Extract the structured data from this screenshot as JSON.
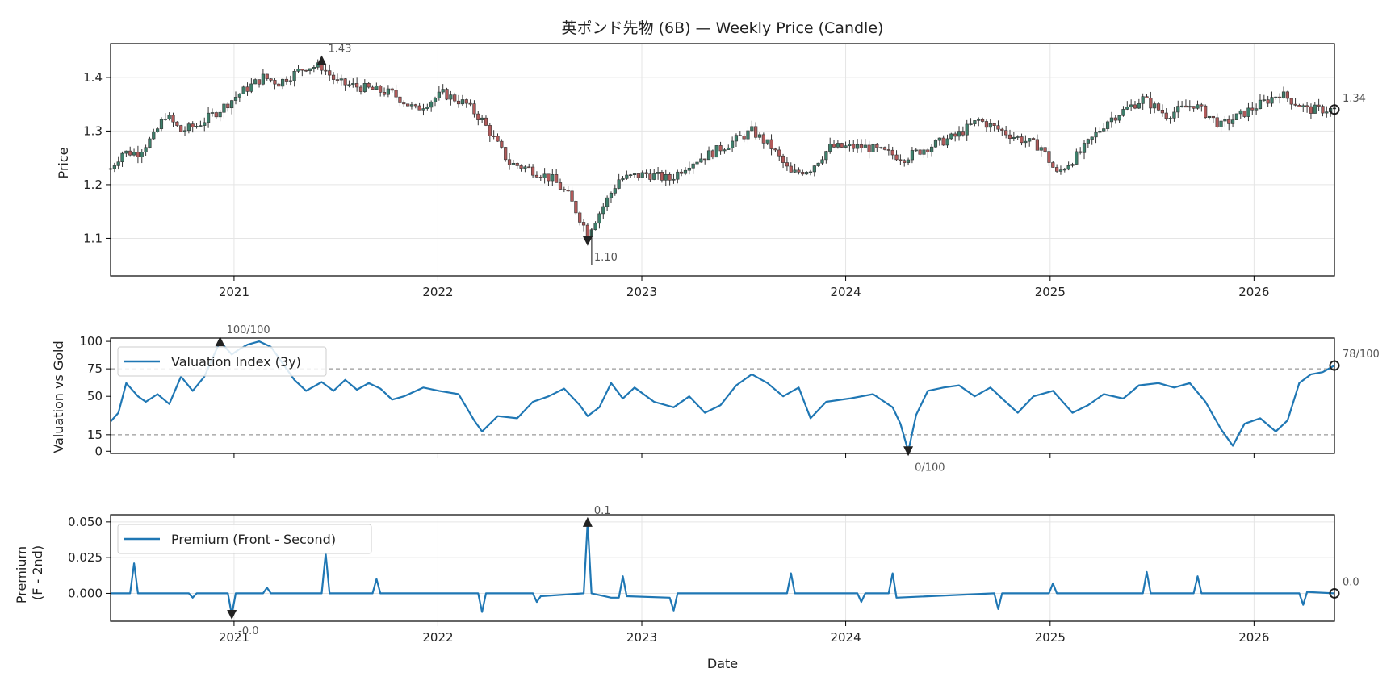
{
  "chart_data": [
    {
      "type": "candlestick",
      "title": "英ポンド先物 (6B) — Weekly Price (Candle)",
      "xlabel": "",
      "ylabel": "Price",
      "x_range": [
        "2020-05-25",
        "2026-05-25"
      ],
      "ylim": [
        1.03,
        1.463
      ],
      "yticks": [
        1.1,
        1.2,
        1.3,
        1.4
      ],
      "xticks": [
        "2021",
        "2022",
        "2023",
        "2024",
        "2025",
        "2026"
      ],
      "grid": true,
      "colors": {
        "up": "#3e7f6b",
        "down": "#b25a5a",
        "wick": "#333333"
      },
      "close_anchors": [
        [
          "2020-05-25",
          1.23
        ],
        [
          "2020-06-15",
          1.26
        ],
        [
          "2020-07-13",
          1.26
        ],
        [
          "2020-08-10",
          1.29
        ],
        [
          "2020-08-31",
          1.33
        ],
        [
          "2020-09-28",
          1.3
        ],
        [
          "2020-10-26",
          1.31
        ],
        [
          "2020-12-07",
          1.34
        ],
        [
          "2021-01-11",
          1.37
        ],
        [
          "2021-02-22",
          1.4
        ],
        [
          "2021-03-22",
          1.39
        ],
        [
          "2021-05-10",
          1.42
        ],
        [
          "2021-06-07",
          1.42
        ],
        [
          "2021-07-05",
          1.39
        ],
        [
          "2021-08-23",
          1.38
        ],
        [
          "2021-10-11",
          1.37
        ],
        [
          "2021-11-22",
          1.34
        ],
        [
          "2022-01-10",
          1.37
        ],
        [
          "2022-02-21",
          1.35
        ],
        [
          "2022-03-21",
          1.32
        ],
        [
          "2022-05-09",
          1.24
        ],
        [
          "2022-06-13",
          1.23
        ],
        [
          "2022-07-25",
          1.21
        ],
        [
          "2022-08-22",
          1.18
        ],
        [
          "2022-09-26",
          1.11
        ],
        [
          "2022-10-24",
          1.16
        ],
        [
          "2022-11-21",
          1.21
        ],
        [
          "2023-01-09",
          1.22
        ],
        [
          "2023-02-20",
          1.21
        ],
        [
          "2023-03-27",
          1.24
        ],
        [
          "2023-05-08",
          1.26
        ],
        [
          "2023-06-12",
          1.28
        ],
        [
          "2023-07-17",
          1.3
        ],
        [
          "2023-08-21",
          1.27
        ],
        [
          "2023-09-25",
          1.22
        ],
        [
          "2023-10-30",
          1.23
        ],
        [
          "2023-12-04",
          1.27
        ],
        [
          "2024-02-05",
          1.27
        ],
        [
          "2024-04-15",
          1.25
        ],
        [
          "2024-05-27",
          1.27
        ],
        [
          "2024-07-15",
          1.29
        ],
        [
          "2024-08-26",
          1.32
        ],
        [
          "2024-10-28",
          1.29
        ],
        [
          "2024-12-16",
          1.27
        ],
        [
          "2025-01-13",
          1.22
        ],
        [
          "2025-02-24",
          1.26
        ],
        [
          "2025-04-14",
          1.32
        ],
        [
          "2025-06-16",
          1.36
        ],
        [
          "2025-07-28",
          1.33
        ],
        [
          "2025-09-15",
          1.35
        ],
        [
          "2025-11-03",
          1.31
        ],
        [
          "2026-01-12",
          1.35
        ],
        [
          "2026-02-16",
          1.37
        ],
        [
          "2026-04-06",
          1.34
        ],
        [
          "2026-05-25",
          1.34
        ]
      ],
      "annotations": [
        {
          "text": "1.43",
          "date": "2021-06-07",
          "value": 1.432,
          "marker": "triangle-up"
        },
        {
          "text": "1.10",
          "date": "2022-09-26",
          "value": 1.095,
          "marker": "triangle-down"
        },
        {
          "text": "1.34",
          "date": "2026-05-25",
          "value": 1.34,
          "marker": "circle"
        }
      ]
    },
    {
      "type": "line",
      "title": "",
      "xlabel": "",
      "ylabel": "Valuation vs Gold",
      "x_range": [
        "2020-05-25",
        "2026-05-25"
      ],
      "ylim": [
        -2,
        103
      ],
      "yticks": [
        0,
        15,
        50,
        75,
        100
      ],
      "reference_lines": [
        75,
        15
      ],
      "legend": {
        "placement": "upper-left"
      },
      "series": [
        {
          "name": "Valuation Index (3y)",
          "color": "#1f77b4",
          "points": [
            [
              "2020-05-25",
              27
            ],
            [
              "2020-06-08",
              35
            ],
            [
              "2020-06-22",
              62
            ],
            [
              "2020-07-13",
              50
            ],
            [
              "2020-07-27",
              45
            ],
            [
              "2020-08-17",
              52
            ],
            [
              "2020-09-07",
              43
            ],
            [
              "2020-09-28",
              68
            ],
            [
              "2020-10-19",
              55
            ],
            [
              "2020-11-09",
              68
            ],
            [
              "2020-12-07",
              100
            ],
            [
              "2020-12-28",
              88
            ],
            [
              "2021-01-11",
              93
            ],
            [
              "2021-01-25",
              97
            ],
            [
              "2021-02-15",
              100
            ],
            [
              "2021-03-08",
              95
            ],
            [
              "2021-03-29",
              80
            ],
            [
              "2021-04-19",
              65
            ],
            [
              "2021-05-10",
              55
            ],
            [
              "2021-06-07",
              63
            ],
            [
              "2021-06-28",
              55
            ],
            [
              "2021-07-19",
              65
            ],
            [
              "2021-08-09",
              56
            ],
            [
              "2021-08-30",
              62
            ],
            [
              "2021-09-20",
              57
            ],
            [
              "2021-10-11",
              47
            ],
            [
              "2021-11-01",
              50
            ],
            [
              "2021-12-06",
              58
            ],
            [
              "2022-01-03",
              55
            ],
            [
              "2022-02-07",
              52
            ],
            [
              "2022-03-07",
              28
            ],
            [
              "2022-03-21",
              18
            ],
            [
              "2022-04-18",
              32
            ],
            [
              "2022-05-23",
              30
            ],
            [
              "2022-06-20",
              45
            ],
            [
              "2022-07-18",
              50
            ],
            [
              "2022-08-15",
              57
            ],
            [
              "2022-09-12",
              42
            ],
            [
              "2022-09-26",
              32
            ],
            [
              "2022-10-17",
              40
            ],
            [
              "2022-11-07",
              62
            ],
            [
              "2022-11-28",
              48
            ],
            [
              "2022-12-19",
              58
            ],
            [
              "2023-01-23",
              45
            ],
            [
              "2023-02-27",
              40
            ],
            [
              "2023-03-27",
              50
            ],
            [
              "2023-04-24",
              35
            ],
            [
              "2023-05-22",
              42
            ],
            [
              "2023-06-19",
              60
            ],
            [
              "2023-07-17",
              70
            ],
            [
              "2023-08-14",
              62
            ],
            [
              "2023-09-11",
              50
            ],
            [
              "2023-10-09",
              58
            ],
            [
              "2023-10-30",
              30
            ],
            [
              "2023-11-27",
              45
            ],
            [
              "2024-01-08",
              48
            ],
            [
              "2024-02-19",
              52
            ],
            [
              "2024-03-25",
              40
            ],
            [
              "2024-04-08",
              25
            ],
            [
              "2024-04-22",
              0
            ],
            [
              "2024-05-06",
              33
            ],
            [
              "2024-05-27",
              55
            ],
            [
              "2024-06-24",
              58
            ],
            [
              "2024-07-22",
              60
            ],
            [
              "2024-08-19",
              50
            ],
            [
              "2024-09-16",
              58
            ],
            [
              "2024-10-07",
              48
            ],
            [
              "2024-11-04",
              35
            ],
            [
              "2024-12-02",
              50
            ],
            [
              "2025-01-06",
              55
            ],
            [
              "2025-02-10",
              35
            ],
            [
              "2025-03-10",
              42
            ],
            [
              "2025-04-07",
              52
            ],
            [
              "2025-05-12",
              48
            ],
            [
              "2025-06-09",
              60
            ],
            [
              "2025-07-14",
              62
            ],
            [
              "2025-08-11",
              58
            ],
            [
              "2025-09-08",
              62
            ],
            [
              "2025-10-06",
              45
            ],
            [
              "2025-11-03",
              20
            ],
            [
              "2025-11-24",
              5
            ],
            [
              "2025-12-15",
              25
            ],
            [
              "2026-01-12",
              30
            ],
            [
              "2026-02-09",
              18
            ],
            [
              "2026-03-02",
              28
            ],
            [
              "2026-03-23",
              62
            ],
            [
              "2026-04-13",
              70
            ],
            [
              "2026-05-04",
              72
            ],
            [
              "2026-05-25",
              78
            ]
          ]
        }
      ],
      "annotations": [
        {
          "text": "100/100",
          "date": "2020-12-07",
          "value": 100,
          "marker": "triangle-up"
        },
        {
          "text": "0/100",
          "date": "2024-04-22",
          "value": 0,
          "marker": "triangle-down"
        },
        {
          "text": "78/100",
          "date": "2026-05-25",
          "value": 78,
          "marker": "circle"
        }
      ]
    },
    {
      "type": "line",
      "title": "",
      "xlabel": "Date",
      "ylabel": "Premium\n(F - 2nd)",
      "x_range": [
        "2020-05-25",
        "2026-05-25"
      ],
      "ylim": [
        -0.0195,
        0.055
      ],
      "yticks": [
        0.0,
        0.025,
        0.05
      ],
      "ytick_labels": [
        "0.000",
        "0.025",
        "0.050"
      ],
      "xticks": [
        "2021",
        "2022",
        "2023",
        "2024",
        "2025",
        "2026"
      ],
      "legend": {
        "placement": "upper-left"
      },
      "series": [
        {
          "name": "Premium (Front - Second)",
          "color": "#1f77b4",
          "points": [
            [
              "2020-05-25",
              0.0
            ],
            [
              "2020-06-29",
              0.0
            ],
            [
              "2020-07-06",
              0.021
            ],
            [
              "2020-07-13",
              0.0
            ],
            [
              "2020-10-12",
              0.0
            ],
            [
              "2020-10-19",
              -0.003
            ],
            [
              "2020-10-26",
              0.0
            ],
            [
              "2020-12-21",
              0.0
            ],
            [
              "2020-12-28",
              -0.015
            ],
            [
              "2021-01-04",
              0.0
            ],
            [
              "2021-02-22",
              0.0
            ],
            [
              "2021-03-01",
              0.004
            ],
            [
              "2021-03-08",
              0.0
            ],
            [
              "2021-06-07",
              0.0
            ],
            [
              "2021-06-14",
              0.028
            ],
            [
              "2021-06-21",
              0.0
            ],
            [
              "2021-09-06",
              0.0
            ],
            [
              "2021-09-13",
              0.01
            ],
            [
              "2021-09-20",
              0.0
            ],
            [
              "2022-03-14",
              0.0
            ],
            [
              "2022-03-21",
              -0.013
            ],
            [
              "2022-03-28",
              0.0
            ],
            [
              "2022-06-20",
              0.0
            ],
            [
              "2022-06-27",
              -0.006
            ],
            [
              "2022-07-04",
              -0.002
            ],
            [
              "2022-09-19",
              0.0
            ],
            [
              "2022-09-26",
              0.05
            ],
            [
              "2022-10-03",
              0.0
            ],
            [
              "2022-11-07",
              -0.003
            ],
            [
              "2022-11-21",
              -0.003
            ],
            [
              "2022-11-28",
              0.012
            ],
            [
              "2022-12-05",
              -0.002
            ],
            [
              "2023-02-20",
              -0.003
            ],
            [
              "2023-02-27",
              -0.012
            ],
            [
              "2023-03-06",
              0.0
            ],
            [
              "2023-09-18",
              0.0
            ],
            [
              "2023-09-25",
              0.014
            ],
            [
              "2023-10-02",
              0.0
            ],
            [
              "2024-01-22",
              0.0
            ],
            [
              "2024-01-29",
              -0.006
            ],
            [
              "2024-02-05",
              0.0
            ],
            [
              "2024-03-18",
              0.0
            ],
            [
              "2024-03-25",
              0.014
            ],
            [
              "2024-04-01",
              -0.003
            ],
            [
              "2024-09-23",
              0.0
            ],
            [
              "2024-09-30",
              -0.011
            ],
            [
              "2024-10-07",
              0.0
            ],
            [
              "2024-12-30",
              0.0
            ],
            [
              "2025-01-06",
              0.007
            ],
            [
              "2025-01-13",
              0.0
            ],
            [
              "2025-06-16",
              0.0
            ],
            [
              "2025-06-23",
              0.015
            ],
            [
              "2025-06-30",
              0.0
            ],
            [
              "2025-09-15",
              0.0
            ],
            [
              "2025-09-22",
              0.012
            ],
            [
              "2025-09-29",
              0.0
            ],
            [
              "2026-03-23",
              0.0
            ],
            [
              "2026-03-30",
              -0.008
            ],
            [
              "2026-04-06",
              0.001
            ],
            [
              "2026-05-25",
              0.0
            ]
          ]
        }
      ],
      "annotations": [
        {
          "text": "0.1",
          "date": "2022-09-26",
          "value": 0.05,
          "marker": "triangle-up"
        },
        {
          "text": "-0.0",
          "date": "2020-12-28",
          "value": -0.015,
          "marker": "triangle-down"
        },
        {
          "text": "0.0",
          "date": "2026-05-25",
          "value": 0.0,
          "marker": "circle"
        }
      ]
    }
  ]
}
